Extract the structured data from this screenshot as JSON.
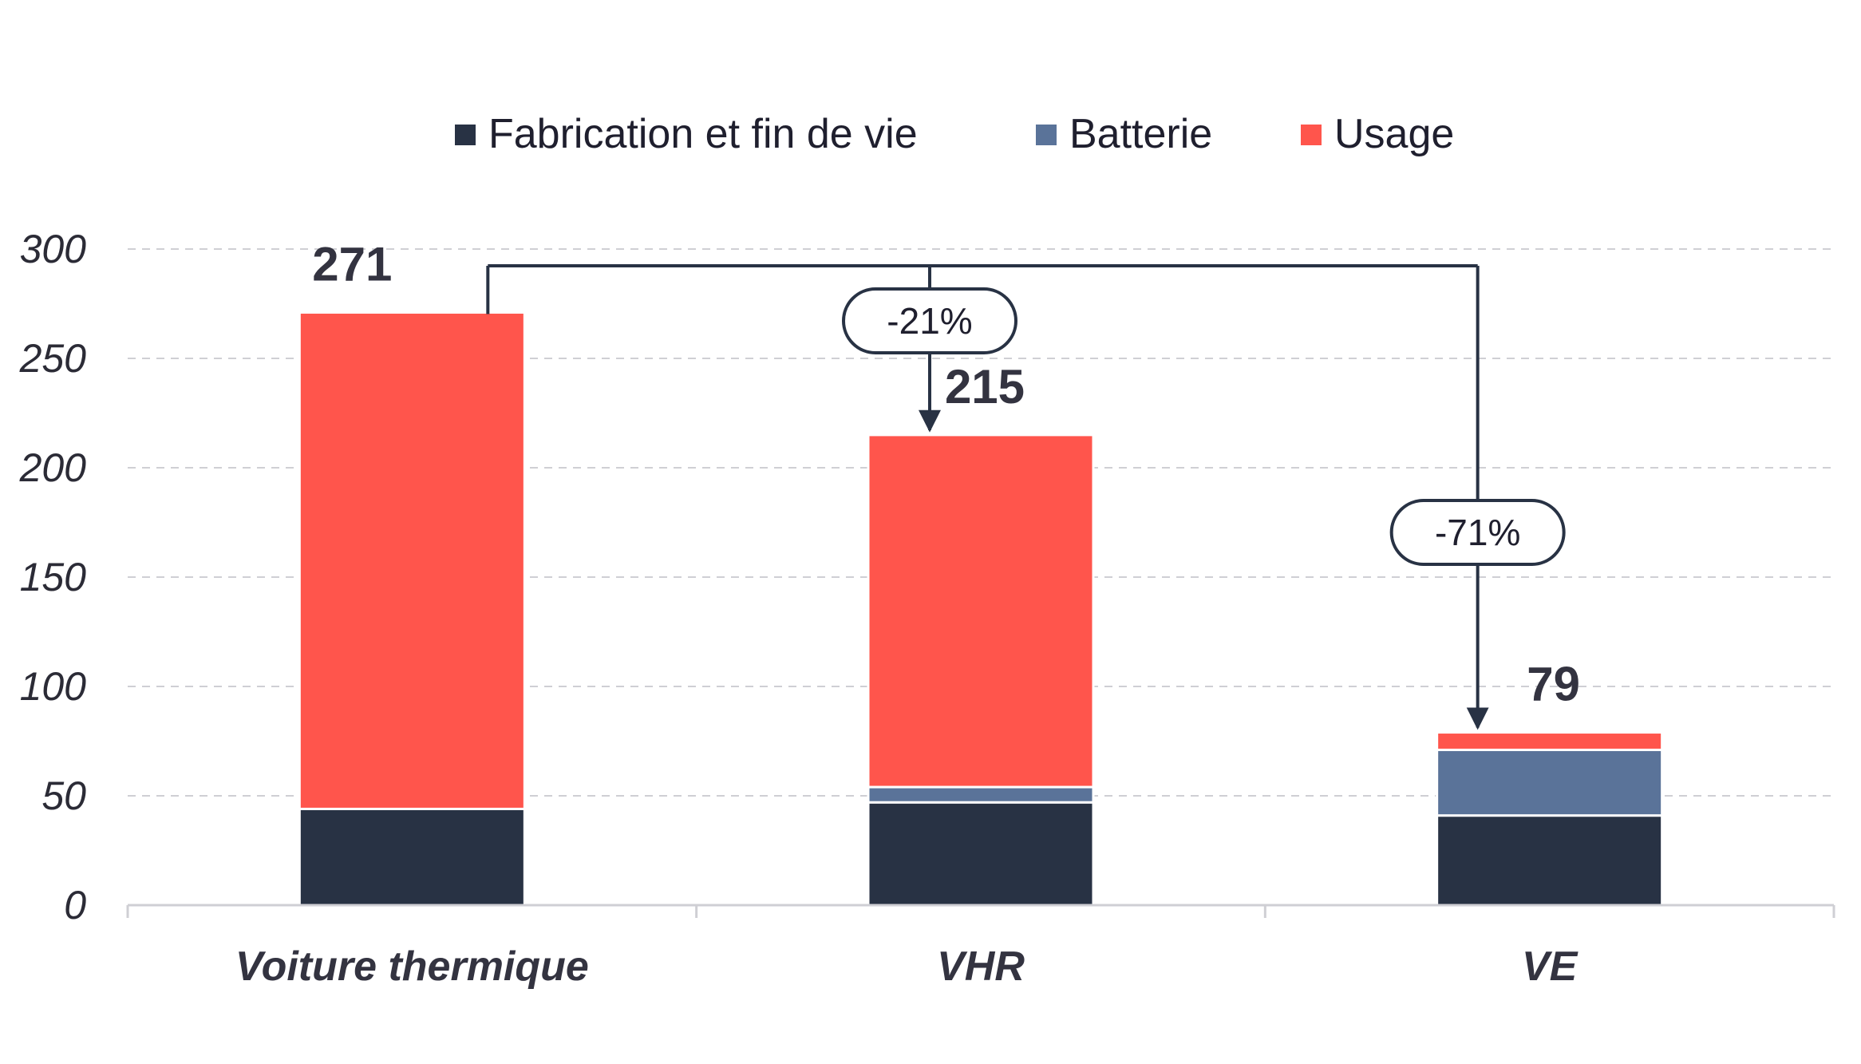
{
  "chart_data": {
    "type": "bar",
    "stacked": true,
    "categories": [
      "Voiture thermique",
      "VHR",
      "VE"
    ],
    "series": [
      {
        "name": "Fabrication et fin de vie",
        "color": "#283244",
        "values": [
          44,
          47,
          41
        ]
      },
      {
        "name": "Batterie",
        "color": "#5a7399",
        "values": [
          0,
          7,
          30
        ]
      },
      {
        "name": "Usage",
        "color": "#ff554c",
        "values": [
          227,
          161,
          8
        ]
      }
    ],
    "totals": [
      "271",
      "215",
      "79"
    ],
    "comparisons": [
      {
        "label": "-21%",
        "from": "Voiture thermique",
        "to": "VHR"
      },
      {
        "label": "-71%",
        "from": "Voiture thermique",
        "to": "VE"
      }
    ],
    "yticks": [
      "0",
      "50",
      "100",
      "150",
      "200",
      "250",
      "300"
    ],
    "ylim": [
      0,
      300
    ],
    "grid": true,
    "legend_position": "top"
  }
}
